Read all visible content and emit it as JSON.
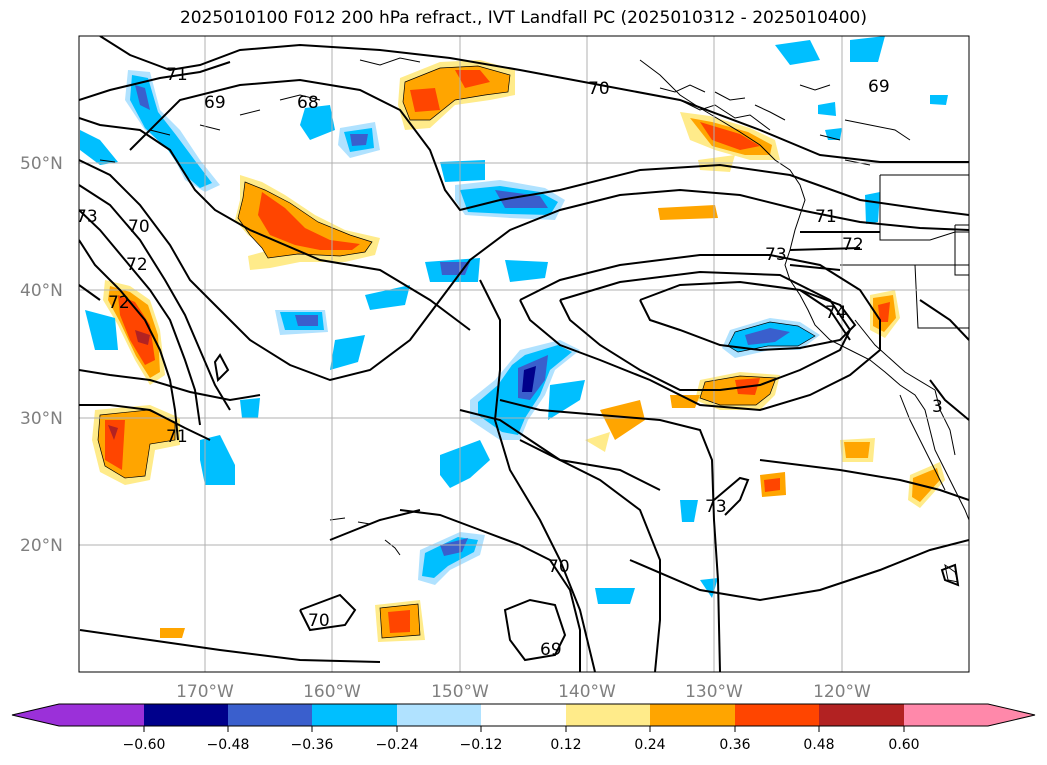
{
  "title": "2025010100 F012 200 hPa refract., IVT Landfall PC (2025010312 - 2025010400)",
  "lat_labels": [
    "50°N",
    "40°N",
    "30°N",
    "20°N"
  ],
  "lon_labels": [
    "170°W",
    "160°W",
    "150°W",
    "140°W",
    "130°W",
    "120°W"
  ],
  "colorbar": {
    "ticks": [
      "−0.60",
      "−0.48",
      "−0.36",
      "−0.24",
      "−0.12",
      "0.12",
      "0.24",
      "0.36",
      "0.48",
      "0.60"
    ],
    "colors": [
      "#9b30d9",
      "#00008b",
      "#3a5fcd",
      "#00bfff",
      "#b0e2ff",
      "#ffffff",
      "#ffeb8a",
      "#ffa500",
      "#ff4500",
      "#b22222",
      "#ff88aa"
    ]
  },
  "contour_labels": [
    "71",
    "69",
    "68",
    "70",
    "69",
    "73",
    "70",
    "72",
    "71",
    "71",
    "72",
    "73",
    "74",
    "3",
    "73",
    "70",
    "70",
    "69",
    "3"
  ]
}
